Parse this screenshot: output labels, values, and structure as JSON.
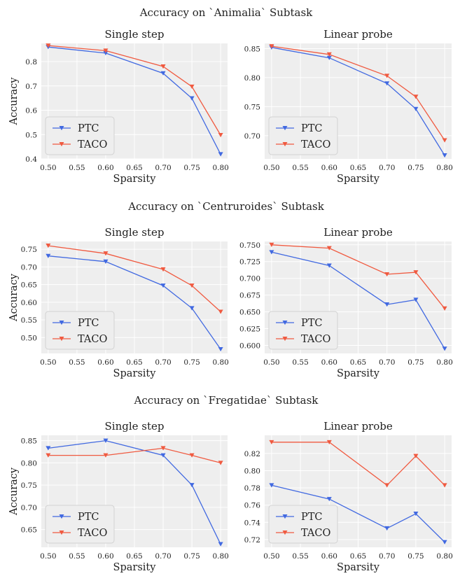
{
  "colors": {
    "PTC": "#4169e1",
    "TACO": "#f05a40",
    "background": "#eeeeee"
  },
  "chart_data": [
    {
      "type": "line",
      "row_title": "Accuracy on `Animalia` Subtask",
      "title": "Single step",
      "xlabel": "Sparsity",
      "ylabel": "Accuracy",
      "x": [
        0.5,
        0.6,
        0.7,
        0.75,
        0.8
      ],
      "xticks": [
        "0.50",
        "0.55",
        "0.60",
        "0.65",
        "0.70",
        "0.75",
        "0.80"
      ],
      "yticks": [
        "0.4",
        "0.5",
        "0.6",
        "0.7",
        "0.8"
      ],
      "ylim": [
        0.4,
        0.875
      ],
      "legend": "lower-left",
      "grid": true,
      "series": [
        {
          "name": "PTC",
          "values": [
            0.86,
            0.835,
            0.752,
            0.649,
            0.419
          ]
        },
        {
          "name": "TACO",
          "values": [
            0.866,
            0.845,
            0.78,
            0.697,
            0.498
          ]
        }
      ]
    },
    {
      "type": "line",
      "title": "Linear probe",
      "xlabel": "Sparsity",
      "ylabel": "",
      "x": [
        0.5,
        0.6,
        0.7,
        0.75,
        0.8
      ],
      "xticks": [
        "0.50",
        "0.55",
        "0.60",
        "0.65",
        "0.70",
        "0.75",
        "0.80"
      ],
      "yticks": [
        "0.70",
        "0.75",
        "0.80",
        "0.85"
      ],
      "ylim": [
        0.66,
        0.859
      ],
      "legend": "lower-left",
      "grid": true,
      "series": [
        {
          "name": "PTC",
          "values": [
            0.852,
            0.834,
            0.79,
            0.746,
            0.666
          ]
        },
        {
          "name": "TACO",
          "values": [
            0.854,
            0.84,
            0.803,
            0.767,
            0.692
          ]
        }
      ]
    },
    {
      "type": "line",
      "row_title": "Accuracy on `Centruroides` Subtask",
      "title": "Single step",
      "xlabel": "Sparsity",
      "ylabel": "Accuracy",
      "x": [
        0.5,
        0.6,
        0.7,
        0.75,
        0.8
      ],
      "xticks": [
        "0.50",
        "0.55",
        "0.60",
        "0.65",
        "0.70",
        "0.75",
        "0.80"
      ],
      "yticks": [
        "0.50",
        "0.55",
        "0.60",
        "0.65",
        "0.70",
        "0.75"
      ],
      "ylim": [
        0.455,
        0.772
      ],
      "legend": "lower-left",
      "grid": true,
      "series": [
        {
          "name": "PTC",
          "values": [
            0.731,
            0.715,
            0.647,
            0.583,
            0.467
          ]
        },
        {
          "name": "TACO",
          "values": [
            0.76,
            0.738,
            0.693,
            0.647,
            0.573
          ]
        }
      ]
    },
    {
      "type": "line",
      "title": "Linear probe",
      "xlabel": "Sparsity",
      "ylabel": "",
      "x": [
        0.5,
        0.6,
        0.7,
        0.75,
        0.8
      ],
      "xticks": [
        "0.50",
        "0.55",
        "0.60",
        "0.65",
        "0.70",
        "0.75",
        "0.80"
      ],
      "yticks": [
        "0.600",
        "0.625",
        "0.650",
        "0.675",
        "0.700",
        "0.725",
        "0.750"
      ],
      "ylim": [
        0.588,
        0.755
      ],
      "legend": "lower-left",
      "grid": true,
      "series": [
        {
          "name": "PTC",
          "values": [
            0.739,
            0.719,
            0.661,
            0.668,
            0.595
          ]
        },
        {
          "name": "TACO",
          "values": [
            0.75,
            0.745,
            0.706,
            0.709,
            0.655
          ]
        }
      ]
    },
    {
      "type": "line",
      "row_title": "Accuracy on `Fregatidae` Subtask",
      "title": "Single step",
      "xlabel": "Sparsity",
      "ylabel": "Accuracy",
      "x": [
        0.5,
        0.6,
        0.7,
        0.75,
        0.8
      ],
      "xticks": [
        "0.50",
        "0.55",
        "0.60",
        "0.65",
        "0.70",
        "0.75",
        "0.80"
      ],
      "yticks": [
        "0.65",
        "0.70",
        "0.75",
        "0.80",
        "0.85"
      ],
      "ylim": [
        0.61,
        0.862
      ],
      "legend": "lower-left",
      "grid": true,
      "series": [
        {
          "name": "PTC",
          "values": [
            0.833,
            0.85,
            0.817,
            0.75,
            0.617
          ]
        },
        {
          "name": "TACO",
          "values": [
            0.817,
            0.817,
            0.833,
            0.817,
            0.8
          ]
        }
      ]
    },
    {
      "type": "line",
      "title": "Linear probe",
      "xlabel": "Sparsity",
      "ylabel": "",
      "x": [
        0.5,
        0.6,
        0.7,
        0.75,
        0.8
      ],
      "xticks": [
        "0.50",
        "0.55",
        "0.60",
        "0.65",
        "0.70",
        "0.75",
        "0.80"
      ],
      "yticks": [
        "0.72",
        "0.74",
        "0.76",
        "0.78",
        "0.80",
        "0.82"
      ],
      "ylim": [
        0.711,
        0.841
      ],
      "legend": "lower-left",
      "grid": true,
      "series": [
        {
          "name": "PTC",
          "values": [
            0.783,
            0.767,
            0.733,
            0.75,
            0.717
          ]
        },
        {
          "name": "TACO",
          "values": [
            0.833,
            0.833,
            0.783,
            0.817,
            0.783
          ]
        }
      ]
    }
  ]
}
